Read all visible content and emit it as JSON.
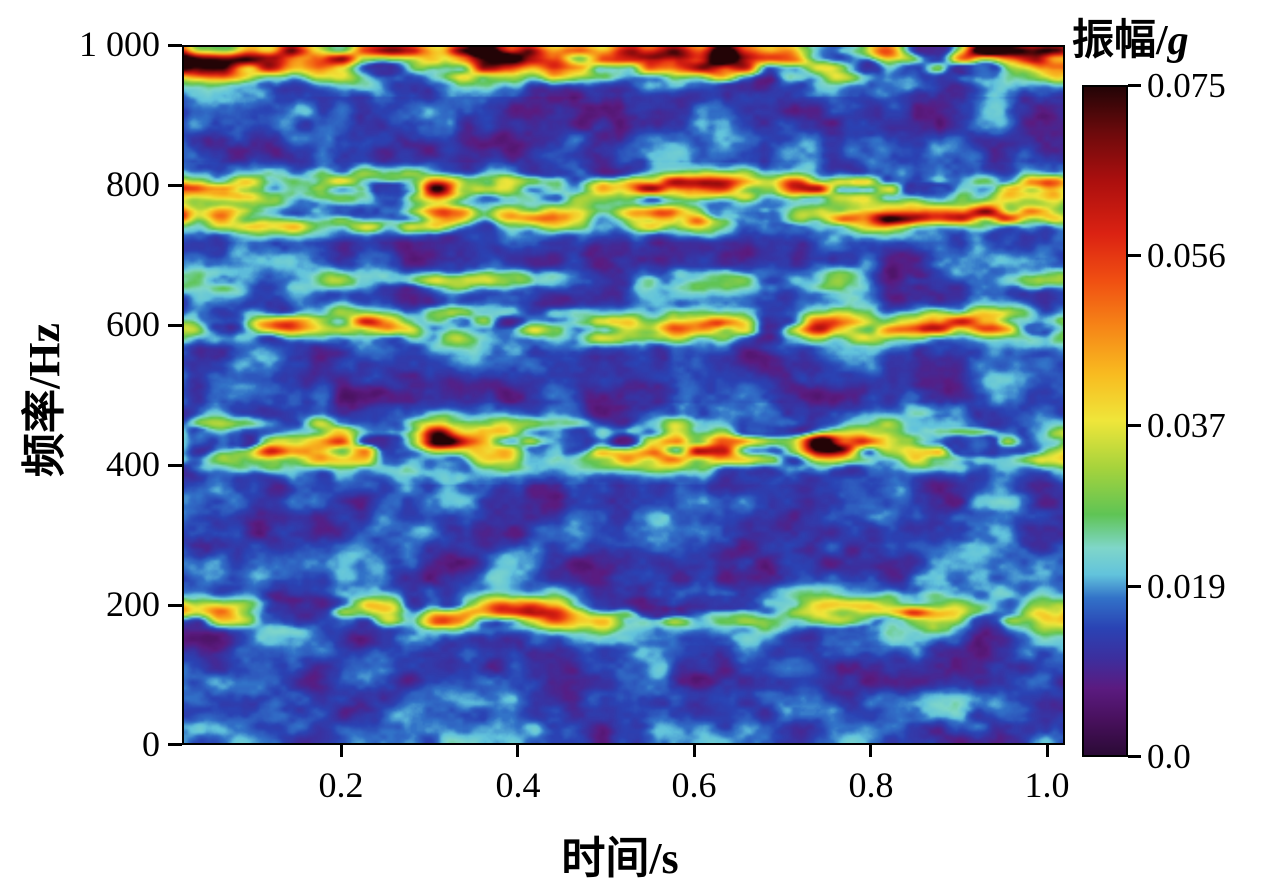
{
  "chart_data": {
    "type": "heatmap",
    "title": "",
    "xlabel": "时间/s",
    "ylabel": "频率/Hz",
    "colorbar_label": "振幅/g",
    "colorbar_label_prefix": "振幅/",
    "colorbar_label_unit": "g",
    "x_range": [
      0.02,
      1.02
    ],
    "y_range": [
      0,
      1000
    ],
    "z_range": [
      0,
      0.075
    ],
    "x_ticks": [
      0.2,
      0.4,
      0.6,
      0.8,
      1.0
    ],
    "x_tick_labels": [
      "0.2",
      "0.4",
      "0.6",
      "0.8",
      "1.0"
    ],
    "y_ticks": [
      1000,
      800,
      600,
      400,
      200,
      0
    ],
    "y_tick_labels": [
      "1 000",
      "800",
      "600",
      "400",
      "200",
      "0"
    ],
    "colorbar_ticks": [
      0.075,
      0.056,
      0.037,
      0.019,
      0.0
    ],
    "colorbar_tick_labels": [
      "0.075",
      "0.056",
      "0.037",
      "0.019",
      "0.0"
    ],
    "grid": false,
    "legend": "none",
    "notes": "Time-frequency spectrogram: intermittent horizontal energy bands near 985, 800, 755, 600, 430 and 185 Hz with red hot spots (amplitude up to ~0.075 g) over a dark blue/purple low-amplitude noise background.",
    "colormap": [
      {
        "pos": 0.0,
        "color": "#2b0a36"
      },
      {
        "pos": 0.05,
        "color": "#47105b"
      },
      {
        "pos": 0.1,
        "color": "#5b1b80"
      },
      {
        "pos": 0.145,
        "color": "#3c2f9e"
      },
      {
        "pos": 0.19,
        "color": "#2a43b4"
      },
      {
        "pos": 0.235,
        "color": "#3272c8"
      },
      {
        "pos": 0.27,
        "color": "#62c3dc"
      },
      {
        "pos": 0.31,
        "color": "#7fd6c9"
      },
      {
        "pos": 0.36,
        "color": "#5fc455"
      },
      {
        "pos": 0.43,
        "color": "#a6d33c"
      },
      {
        "pos": 0.5,
        "color": "#efe63a"
      },
      {
        "pos": 0.57,
        "color": "#f8bb20"
      },
      {
        "pos": 0.64,
        "color": "#f68617"
      },
      {
        "pos": 0.71,
        "color": "#f04f12"
      },
      {
        "pos": 0.78,
        "color": "#db2212"
      },
      {
        "pos": 0.86,
        "color": "#ab0f0e"
      },
      {
        "pos": 0.93,
        "color": "#6e0a0c"
      },
      {
        "pos": 1.0,
        "color": "#230406"
      }
    ],
    "bands": [
      {
        "freq": 985,
        "sigma": 20,
        "strength": 1.0,
        "seed": 1
      },
      {
        "freq": 800,
        "sigma": 13,
        "strength": 0.8,
        "seed": 2
      },
      {
        "freq": 756,
        "sigma": 13,
        "strength": 0.68,
        "seed": 3
      },
      {
        "freq": 665,
        "sigma": 11,
        "strength": 0.32,
        "seed": 4
      },
      {
        "freq": 600,
        "sigma": 15,
        "strength": 0.6,
        "seed": 5
      },
      {
        "freq": 430,
        "sigma": 21,
        "strength": 0.9,
        "seed": 6
      },
      {
        "freq": 185,
        "sigma": 16,
        "strength": 0.62,
        "seed": 7
      }
    ],
    "background": {
      "base": 0.02,
      "octave1": 0.26,
      "octave2": 0.08
    }
  }
}
